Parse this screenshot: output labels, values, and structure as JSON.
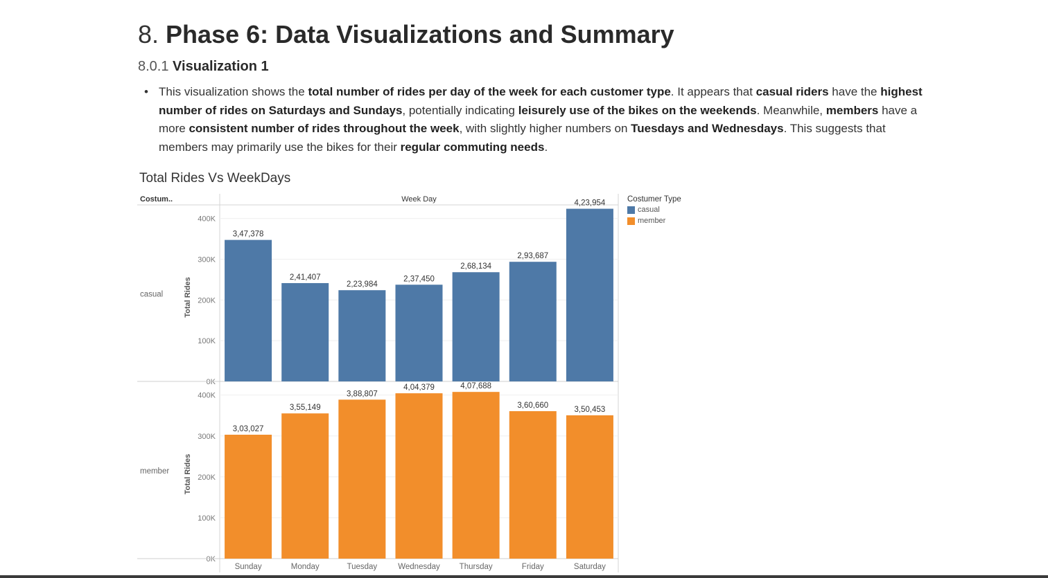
{
  "heading": {
    "number": "8.",
    "title": "Phase 6: Data Visualizations and Summary"
  },
  "subheading": {
    "number": "8.0.1",
    "title": "Visualization 1"
  },
  "paragraph": {
    "p1": "This visualization shows the ",
    "b1": "total number of rides per day of the week for each customer type",
    "p2": ". It appears that ",
    "b2": "casual riders",
    "p3": " have the ",
    "b3": "highest number of rides on Saturdays and Sundays",
    "p4": ", potentially indicating ",
    "b4": "leisurely use of the bikes on the weekends",
    "p5": ". Meanwhile, ",
    "b5": "members",
    "p6": " have a more ",
    "b6": "consistent number of rides throughout the week",
    "p7": ", with slightly higher numbers on ",
    "b7": "Tuesdays and Wednesdays",
    "p8": ". This suggests that members may primarily use the bikes for their ",
    "b8": "regular commuting needs",
    "p9": "."
  },
  "chart_data": {
    "type": "bar",
    "title": "Total Rides Vs WeekDays",
    "row_header": "Costum..",
    "column_header": "Week Day",
    "ylabel": "Total Rides",
    "ylim": [
      0,
      430000
    ],
    "yticks": [
      "0K",
      "100K",
      "200K",
      "300K",
      "400K"
    ],
    "categories": [
      "Sunday",
      "Monday",
      "Tuesday",
      "Wednesday",
      "Thursday",
      "Friday",
      "Saturday"
    ],
    "series": [
      {
        "name": "casual",
        "color": "#4e79a7",
        "values": [
          347378,
          241407,
          223984,
          237450,
          268134,
          293687,
          423954
        ],
        "labels": [
          "3,47,378",
          "2,41,407",
          "2,23,984",
          "2,37,450",
          "2,68,134",
          "2,93,687",
          "4,23,954"
        ]
      },
      {
        "name": "member",
        "color": "#f28e2b",
        "values": [
          303027,
          355149,
          388807,
          404379,
          407688,
          360660,
          350453
        ],
        "labels": [
          "3,03,027",
          "3,55,149",
          "3,88,807",
          "4,04,379",
          "4,07,688",
          "3,60,660",
          "3,50,453"
        ]
      }
    ],
    "legend": {
      "title": "Costumer Type",
      "position": "right"
    },
    "grid": true
  }
}
